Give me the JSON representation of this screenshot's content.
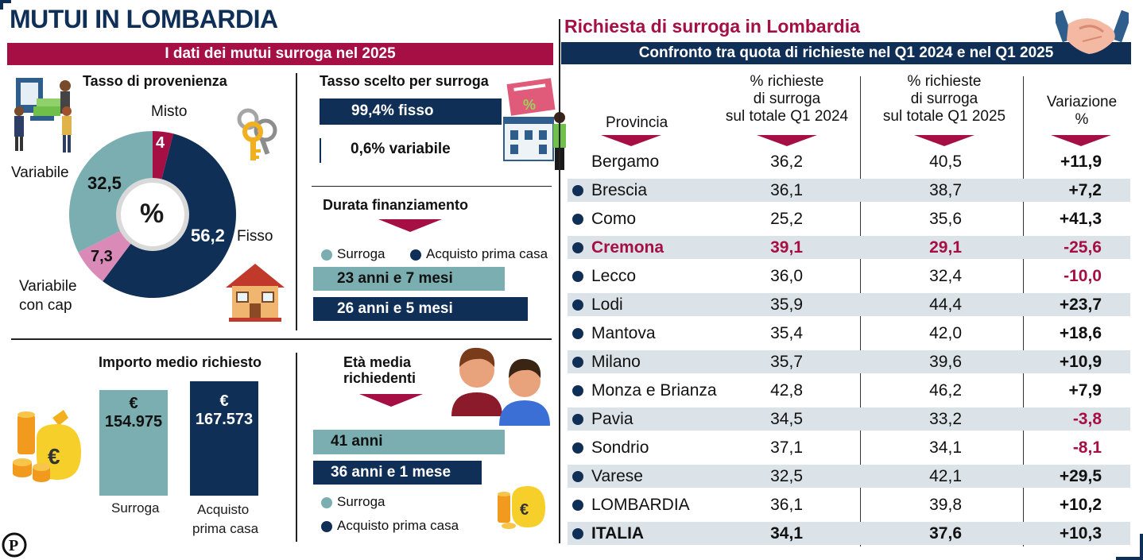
{
  "header": {
    "main_title": "MUTUI IN LOMBARDIA",
    "left_banner": "I dati dei mutui surroga nel 2025",
    "right_title": "Richiesta di surroga in Lombardia",
    "right_banner": "Confronto tra quota di richieste nel Q1 2024 e nel Q1 2025"
  },
  "tasso_provenienza": {
    "title": "Tasso di provenienza",
    "center_label": "%",
    "labels": {
      "misto": "Misto",
      "fisso": "Fisso",
      "variabile": "Variabile",
      "variabile_cap_1": "Variabile",
      "variabile_cap_2": "con cap"
    },
    "value_labels": {
      "misto": "4",
      "fisso": "56,2",
      "variabile": "32,5",
      "variabile_cap": "7,3"
    }
  },
  "tasso_scelto": {
    "title": "Tasso scelto per surroga",
    "fisso_label": "99,4% fisso",
    "variabile_label": "0,6% variabile",
    "fisso_pct": 99.4,
    "variabile_pct": 0.6
  },
  "durata": {
    "title": "Durata finanziamento",
    "legend_surroga": "Surroga",
    "legend_acquisto": "Acquisto prima casa",
    "surroga_label": "23 anni e 7 mesi",
    "acquisto_label": "26 anni e 5 mesi"
  },
  "importo": {
    "title": "Importo medio richiesto",
    "currency": "€",
    "surroga_value": "154.975",
    "acquisto_value": "167.573",
    "surroga_label": "Surroga",
    "acquisto_label_1": "Acquisto",
    "acquisto_label_2": "prima casa"
  },
  "eta": {
    "title_1": "Età media",
    "title_2": "richiedenti",
    "surroga_label": "41 anni",
    "acquisto_label": "36 anni e 1 mese",
    "legend_surroga": "Surroga",
    "legend_acquisto": "Acquisto prima casa"
  },
  "table": {
    "headers": {
      "provincia": "Provincia",
      "q2024": [
        "% richieste",
        "di surroga",
        "sul totale Q1 2024"
      ],
      "q2025": [
        "% richieste",
        "di surroga",
        "sul totale Q1 2025"
      ],
      "variazione": [
        "Variazione",
        "%"
      ]
    },
    "rows": [
      {
        "name": "Bergamo",
        "q2024": "36,2",
        "q2025": "40,5",
        "var": "+11,9"
      },
      {
        "name": "Brescia",
        "q2024": "36,1",
        "q2025": "38,7",
        "var": "+7,2"
      },
      {
        "name": "Como",
        "q2024": "25,2",
        "q2025": "35,6",
        "var": "+41,3"
      },
      {
        "name": "Cremona",
        "q2024": "39,1",
        "q2025": "29,1",
        "var": "-25,6"
      },
      {
        "name": "Lecco",
        "q2024": "36,0",
        "q2025": "32,4",
        "var": "-10,0"
      },
      {
        "name": "Lodi",
        "q2024": "35,9",
        "q2025": "44,4",
        "var": "+23,7"
      },
      {
        "name": "Mantova",
        "q2024": "35,4",
        "q2025": "42,0",
        "var": "+18,6"
      },
      {
        "name": "Milano",
        "q2024": "35,7",
        "q2025": "39,6",
        "var": "+10,9"
      },
      {
        "name": "Monza e Brianza",
        "q2024": "42,8",
        "q2025": "46,2",
        "var": "+7,9"
      },
      {
        "name": "Pavia",
        "q2024": "34,5",
        "q2025": "33,2",
        "var": "-3,8"
      },
      {
        "name": "Sondrio",
        "q2024": "37,1",
        "q2025": "34,1",
        "var": "-8,1"
      },
      {
        "name": "Varese",
        "q2024": "32,5",
        "q2025": "42,1",
        "var": "+29,5"
      },
      {
        "name": "LOMBARDIA",
        "q2024": "36,1",
        "q2025": "39,8",
        "var": "+10,2"
      },
      {
        "name": "ITALIA",
        "q2024": "34,1",
        "q2025": "37,6",
        "var": "+10,3"
      }
    ]
  },
  "colors": {
    "burgundy": "#a50f43",
    "navy": "#0f2f57",
    "teal": "#7aaeb0",
    "pink": "#d98ab6",
    "shade": "#dbe3e8"
  },
  "chart_data": [
    {
      "type": "pie",
      "title": "Tasso di provenienza",
      "categories": [
        "Misto",
        "Fisso",
        "Variabile con cap",
        "Variabile"
      ],
      "values": [
        4,
        56.2,
        7.3,
        32.5
      ],
      "unit": "%"
    },
    {
      "type": "bar",
      "title": "Importo medio richiesto",
      "categories": [
        "Surroga",
        "Acquisto prima casa"
      ],
      "values": [
        154975,
        167573
      ],
      "unit": "€"
    },
    {
      "type": "bar",
      "title": "Durata finanziamento",
      "categories": [
        "Surroga",
        "Acquisto prima casa"
      ],
      "values_months": [
        283,
        317
      ]
    },
    {
      "type": "bar",
      "title": "Età media richiedenti",
      "categories": [
        "Surroga",
        "Acquisto prima casa"
      ],
      "values_months": [
        492,
        433
      ]
    },
    {
      "type": "table",
      "title": "Confronto tra quota di richieste nel Q1 2024 e nel Q1 2025",
      "columns": [
        "Provincia",
        "% richieste di surroga sul totale Q1 2024",
        "% richieste di surroga sul totale Q1 2025",
        "Variazione %"
      ]
    }
  ]
}
